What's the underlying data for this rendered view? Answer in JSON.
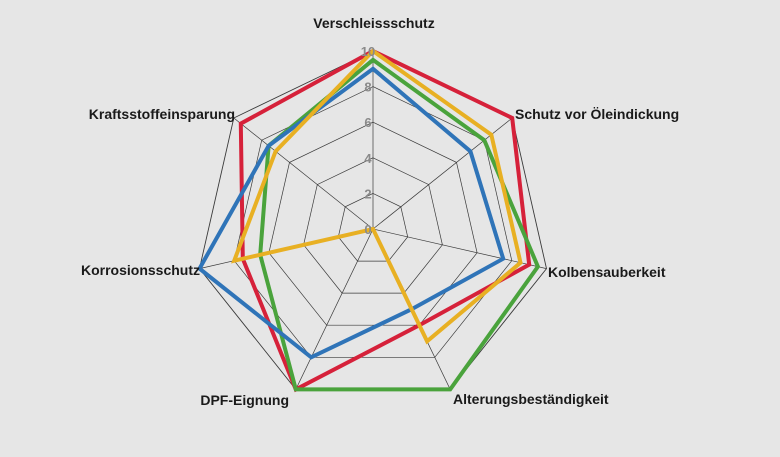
{
  "chart_data": {
    "type": "radar",
    "categories": [
      "Verschleissschutz",
      "Schutz vor Öleindickung",
      "Kolbensauberkeit",
      "Alterungsbeständigkeit",
      "DPF-Eignung",
      "Korrosionsschutz",
      "Kraftsstoffeinsparung"
    ],
    "ticks": [
      "0",
      "2",
      "4",
      "6",
      "8",
      "10"
    ],
    "rlim": [
      0,
      10
    ],
    "grid": true,
    "series": [
      {
        "color": "#d6213a",
        "values": [
          10,
          10,
          9,
          6,
          10,
          7.5,
          9.5
        ]
      },
      {
        "color": "#4aa33c",
        "values": [
          9.5,
          8,
          9.5,
          10,
          10,
          6.5,
          7.5
        ]
      },
      {
        "color": "#2f74b8",
        "values": [
          9,
          7,
          7.5,
          5,
          8,
          10,
          7.5
        ]
      },
      {
        "color": "#e8b023",
        "values": [
          10,
          8.5,
          8.5,
          7,
          0,
          8,
          7
        ]
      }
    ]
  }
}
